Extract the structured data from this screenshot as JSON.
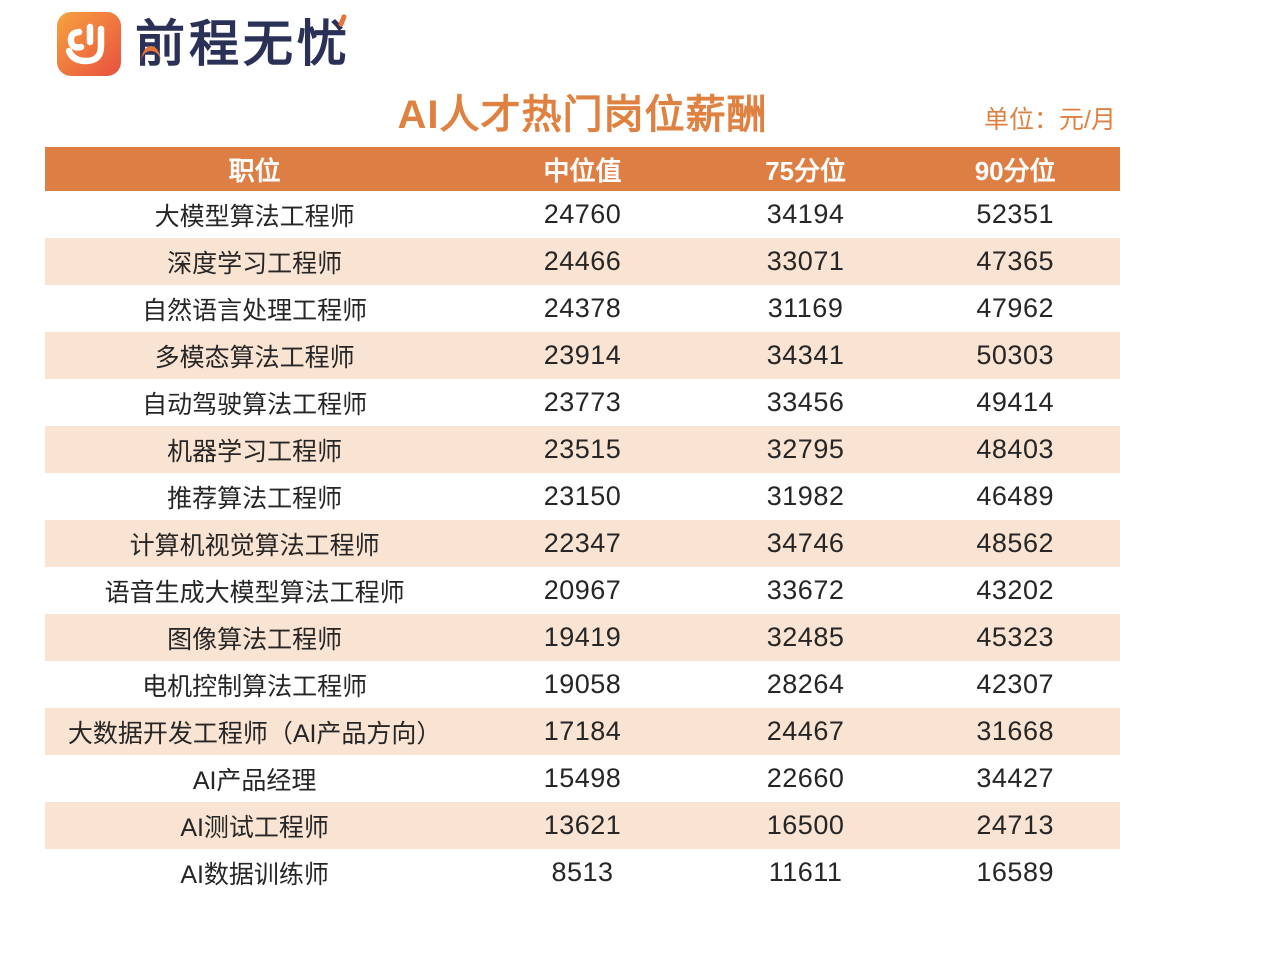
{
  "logo": {
    "brand": "前程无忧",
    "icon": "51job-hand-icon"
  },
  "header": {
    "title": "AI人才热门岗位薪酬",
    "unit": "单位：元/月"
  },
  "chart_data": {
    "type": "table",
    "title": "AI人才热门岗位薪酬",
    "unit": "元/月",
    "columns": [
      "职位",
      "中位值",
      "75分位",
      "90分位"
    ],
    "rows": [
      [
        "大模型算法工程师",
        24760,
        34194,
        52351
      ],
      [
        "深度学习工程师",
        24466,
        33071,
        47365
      ],
      [
        "自然语言处理工程师",
        24378,
        31169,
        47962
      ],
      [
        "多模态算法工程师",
        23914,
        34341,
        50303
      ],
      [
        "自动驾驶算法工程师",
        23773,
        33456,
        49414
      ],
      [
        "机器学习工程师",
        23515,
        32795,
        48403
      ],
      [
        "推荐算法工程师",
        23150,
        31982,
        46489
      ],
      [
        "计算机视觉算法工程师",
        22347,
        34746,
        48562
      ],
      [
        "语音生成大模型算法工程师",
        20967,
        33672,
        43202
      ],
      [
        "图像算法工程师",
        19419,
        32485,
        45323
      ],
      [
        "电机控制算法工程师",
        19058,
        28264,
        42307
      ],
      [
        "大数据开发工程师（AI产品方向）",
        17184,
        24467,
        31668
      ],
      [
        "AI产品经理",
        15498,
        22660,
        34427
      ],
      [
        "AI测试工程师",
        13621,
        16500,
        24713
      ],
      [
        "AI数据训练师",
        8513,
        11611,
        16589
      ]
    ]
  },
  "colors": {
    "header_bg": "#DD7F44",
    "stripe_bg": "#F9E3D2",
    "accent_orange": "#DF8140",
    "brand_navy": "#2B3156",
    "logo_gradient_start": "#F7A23F",
    "logo_gradient_end": "#E8503F",
    "text_dark": "#262626"
  }
}
